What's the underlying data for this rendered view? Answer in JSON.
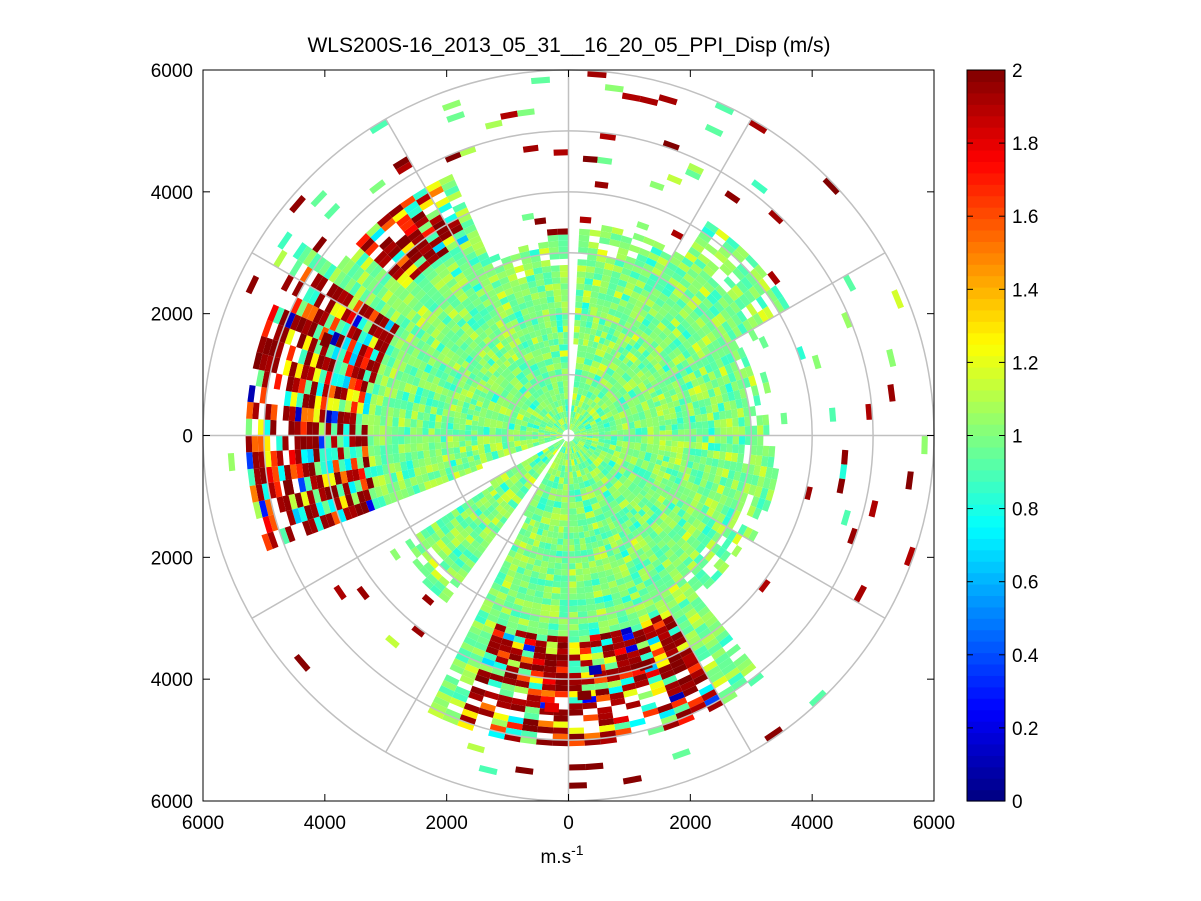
{
  "chart_data": {
    "type": "heatmap",
    "subtype": "polar-ppi",
    "title": "WLS200S-16_2013_05_31__16_20_05_PPI_Disp (m/s)",
    "xlabel": "m.s",
    "xlabel_sup": "-1",
    "xlim": [
      -6000,
      6000
    ],
    "ylim": [
      -6000,
      6000
    ],
    "x_tick_values": [
      -6000,
      -4000,
      -2000,
      0,
      2000,
      4000,
      6000
    ],
    "x_tick_labels": [
      "6000",
      "4000",
      "2000",
      "0",
      "2000",
      "4000",
      "6000"
    ],
    "y_tick_values": [
      6000,
      4000,
      2000,
      0,
      -2000,
      -4000,
      -6000
    ],
    "y_tick_labels": [
      "6000",
      "4000",
      "2000",
      "0",
      "2000",
      "4000",
      "6000"
    ],
    "polar_grid_ranges": [
      1000,
      2000,
      3000,
      4000,
      5000,
      6000
    ],
    "polar_grid_azimuth_step_deg": 30,
    "colorbar": {
      "colormap": "jet",
      "clim": [
        0,
        2
      ],
      "tick_values": [
        0,
        0.2,
        0.4,
        0.6,
        0.8,
        1,
        1.2,
        1.4,
        1.6,
        1.8,
        2
      ],
      "tick_labels": [
        "0",
        "0.2",
        "0.4",
        "0.6",
        "0.8",
        "1",
        "1.2",
        "1.4",
        "1.6",
        "1.8",
        "2"
      ]
    },
    "field": {
      "max_range_m": 6000,
      "core_value": 1.0,
      "core_radius_m": 3300,
      "gap_sectors_deg": [
        [
          0,
          2
        ],
        [
          206,
          214
        ],
        [
          236,
          246
        ]
      ],
      "high_value_regions": [
        {
          "name": "south-arc",
          "az_deg": [
            150,
            200
          ],
          "range_m": [
            3300,
            5000
          ],
          "value": 1.9
        },
        {
          "name": "west-cluster",
          "az_deg": [
            245,
            300
          ],
          "range_m": [
            3300,
            5400
          ],
          "value": 1.9
        },
        {
          "name": "northwest-cluster",
          "az_deg": [
            310,
            330
          ],
          "range_m": [
            3600,
            4700
          ],
          "value": 1.9
        }
      ],
      "sample_gates": [
        {
          "r": 4200,
          "az": 175,
          "v": 2.0
        },
        {
          "r": 4400,
          "az": 182,
          "v": 1.8
        },
        {
          "r": 3900,
          "az": 160,
          "v": 2.0
        },
        {
          "r": 4100,
          "az": 150,
          "v": 1.9
        },
        {
          "r": 3800,
          "az": 172,
          "v": 0.1
        },
        {
          "r": 4600,
          "az": 258,
          "v": 2.0
        },
        {
          "r": 4200,
          "az": 290,
          "v": 2.0
        },
        {
          "r": 4100,
          "az": 318,
          "v": 2.0
        },
        {
          "r": 3000,
          "az": 60,
          "v": 1.0
        },
        {
          "r": 2000,
          "az": 10,
          "v": 1.1
        }
      ]
    }
  }
}
